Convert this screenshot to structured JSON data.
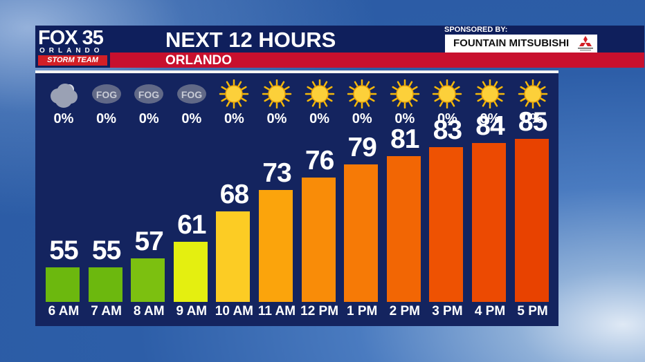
{
  "branding": {
    "station": "FOX 35",
    "city": "ORLANDO",
    "team": "STORM TEAM"
  },
  "header": {
    "title": "NEXT 12 HOURS",
    "location": "ORLANDO",
    "sponsor_label": "SPONSORED BY:",
    "sponsor_name": "FOUNTAIN MITSUBISHI"
  },
  "chart_data": {
    "type": "bar",
    "title": "NEXT 12 HOURS",
    "categories": [
      "6 AM",
      "7 AM",
      "8 AM",
      "9 AM",
      "10 AM",
      "11 AM",
      "12 PM",
      "1 PM",
      "2 PM",
      "3 PM",
      "4 PM",
      "5 PM"
    ],
    "values": [
      55,
      55,
      57,
      61,
      68,
      73,
      76,
      79,
      81,
      83,
      84,
      85
    ],
    "precip": [
      "0%",
      "0%",
      "0%",
      "0%",
      "0%",
      "0%",
      "0%",
      "0%",
      "0%",
      "0%",
      "0%",
      "0%"
    ],
    "conditions": [
      "cloudy-night-icon",
      "fog-icon",
      "fog-icon",
      "fog-icon",
      "sun-icon",
      "sun-icon",
      "sun-icon",
      "sun-icon",
      "sun-icon",
      "sun-icon",
      "sun-icon",
      "sun-icon"
    ],
    "fog_label": "FOG",
    "bar_colors": [
      "#6cb80e",
      "#6cb80e",
      "#7cc010",
      "#e4ef10",
      "#fccc24",
      "#fba40c",
      "#f98c08",
      "#f67a06",
      "#f26604",
      "#ee5202",
      "#ec4a02",
      "#e84200"
    ]
  }
}
